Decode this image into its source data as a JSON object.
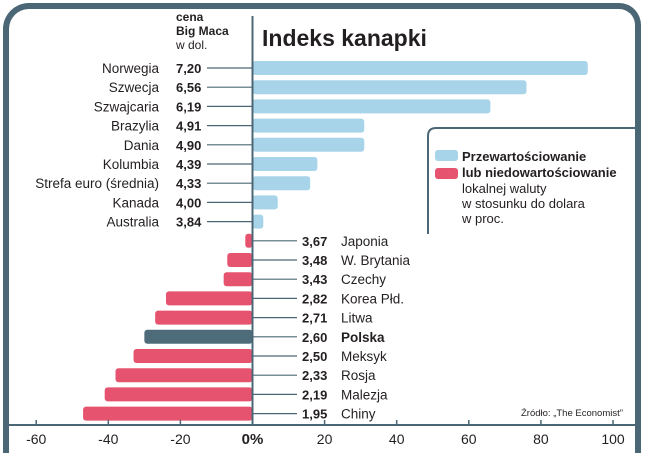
{
  "chart_data": {
    "type": "bar",
    "orientation": "horizontal",
    "title": "Indeks kanapki",
    "price_header": [
      "cena",
      "Big Maca",
      "w dol."
    ],
    "unit_note": "w proc.",
    "xlim": [
      -60,
      100
    ],
    "x_ticks": [
      "-60",
      "-40",
      "-20",
      "0%",
      "20",
      "40",
      "60",
      "80",
      "100"
    ],
    "x_tick_values": [
      -60,
      -40,
      -20,
      0,
      20,
      40,
      60,
      80,
      100
    ],
    "colors": {
      "over": "#a8d4ea",
      "under": "#e5536f",
      "highlight": "#4e6b7a",
      "axis": "#4b6776"
    },
    "legend": {
      "over_label": "Przewartościowanie",
      "under_label": "lub niedowartościowanie",
      "description": [
        "lokalnej waluty",
        "w stosunku do dolara",
        "w proc."
      ]
    },
    "source": "Źródło: „The Economist”",
    "countries": [
      {
        "name": "Norwegia",
        "price": "7,20",
        "value": 93
      },
      {
        "name": "Szwecja",
        "price": "6,56",
        "value": 76
      },
      {
        "name": "Szwajcaria",
        "price": "6,19",
        "value": 66
      },
      {
        "name": "Brazylia",
        "price": "4,91",
        "value": 31
      },
      {
        "name": "Dania",
        "price": "4,90",
        "value": 31
      },
      {
        "name": "Kolumbia",
        "price": "4,39",
        "value": 18
      },
      {
        "name": "Strefa euro (średnia)",
        "price": "4,33",
        "value": 16
      },
      {
        "name": "Kanada",
        "price": "4,00",
        "value": 7
      },
      {
        "name": "Australia",
        "price": "3,84",
        "value": 3
      },
      {
        "name": "Japonia",
        "price": "3,67",
        "value": -2
      },
      {
        "name": "W. Brytania",
        "price": "3,48",
        "value": -7
      },
      {
        "name": "Czechy",
        "price": "3,43",
        "value": -8
      },
      {
        "name": "Korea Płd.",
        "price": "2,82",
        "value": -24
      },
      {
        "name": "Litwa",
        "price": "2,71",
        "value": -27
      },
      {
        "name": "Polska",
        "price": "2,60",
        "value": -30,
        "highlight": true
      },
      {
        "name": "Meksyk",
        "price": "2,50",
        "value": -33
      },
      {
        "name": "Rosja",
        "price": "2,33",
        "value": -38
      },
      {
        "name": "Malezja",
        "price": "2,19",
        "value": -41
      },
      {
        "name": "Chiny",
        "price": "1,95",
        "value": -47
      }
    ]
  }
}
